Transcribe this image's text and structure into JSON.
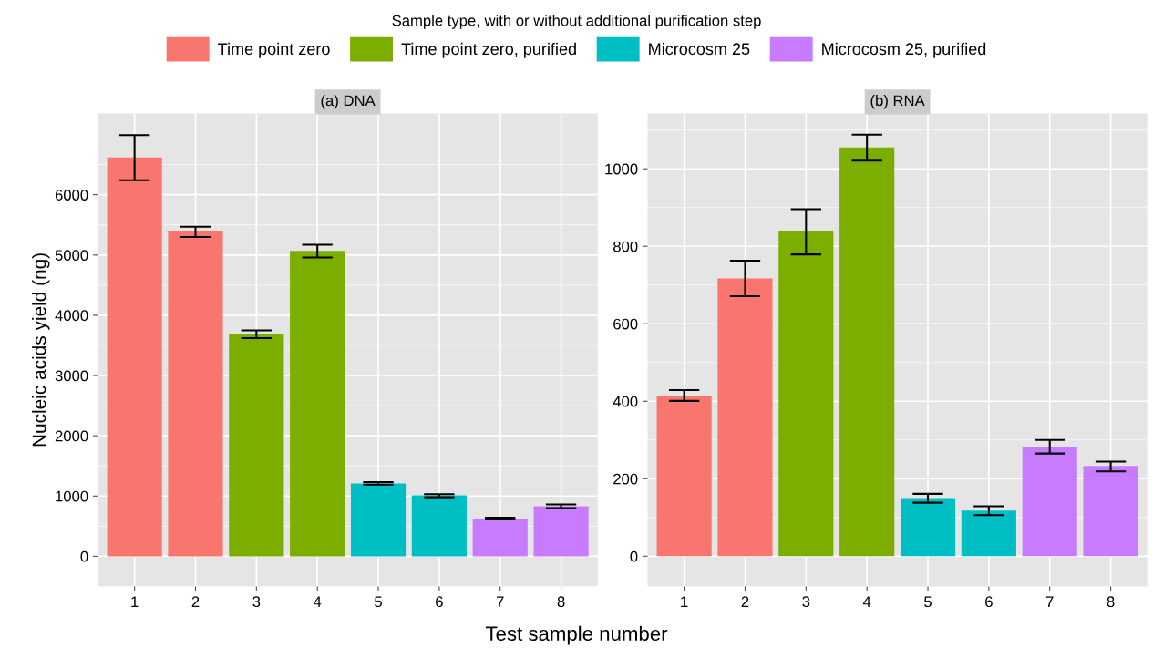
{
  "chart_data": [
    {
      "type": "bar",
      "title": "(a) DNA",
      "xlabel": "Test sample number",
      "ylabel": "Nucleic acids yield (ng)",
      "legend_title": "Sample type, with or without additional purification step",
      "legend": "top",
      "categories": [
        "1",
        "2",
        "3",
        "4",
        "5",
        "6",
        "7",
        "8"
      ],
      "series": [
        {
          "name": "Time point zero",
          "color": "#f8766d",
          "values": [
            6620,
            5390,
            null,
            null,
            null,
            null,
            null,
            null
          ],
          "errors": [
            [
              6240,
              6990
            ],
            [
              5300,
              5470
            ],
            null,
            null,
            null,
            null,
            null,
            null
          ]
        },
        {
          "name": "Time point zero, purified",
          "color": "#7cae00",
          "values": [
            null,
            null,
            3690,
            5070,
            null,
            null,
            null,
            null
          ],
          "errors": [
            null,
            null,
            [
              3620,
              3750
            ],
            [
              4960,
              5170
            ],
            null,
            null,
            null,
            null
          ]
        },
        {
          "name": "Microcosm 25",
          "color": "#00bfc4",
          "values": [
            null,
            null,
            null,
            null,
            1210,
            1010,
            null,
            null
          ],
          "errors": [
            null,
            null,
            null,
            null,
            [
              1190,
              1230
            ],
            [
              980,
              1030
            ],
            null,
            null
          ]
        },
        {
          "name": "Microcosm 25, purified",
          "color": "#c77cff",
          "values": [
            null,
            null,
            null,
            null,
            null,
            null,
            620,
            830
          ],
          "errors": [
            null,
            null,
            null,
            null,
            null,
            null,
            [
              610,
              640
            ],
            [
              800,
              860
            ]
          ]
        }
      ],
      "ylim": [
        -500,
        7350
      ],
      "yticks": [
        0,
        1000,
        2000,
        3000,
        4000,
        5000,
        6000
      ],
      "grid": true
    },
    {
      "type": "bar",
      "title": "(b) RNA",
      "categories": [
        "1",
        "2",
        "3",
        "4",
        "5",
        "6",
        "7",
        "8"
      ],
      "series": [
        {
          "color": "#f8766d",
          "values": [
            415,
            717,
            null,
            null,
            null,
            null,
            null,
            null
          ],
          "errors": [
            [
              401,
              429
            ],
            [
              671,
              763
            ],
            null,
            null,
            null,
            null,
            null,
            null
          ]
        },
        {
          "color": "#7cae00",
          "values": [
            null,
            null,
            839,
            1055,
            null,
            null,
            null,
            null
          ],
          "errors": [
            null,
            null,
            [
              779,
              896
            ],
            [
              1021,
              1088
            ],
            null,
            null,
            null,
            null
          ]
        },
        {
          "color": "#00bfc4",
          "values": [
            null,
            null,
            null,
            null,
            150,
            118,
            null,
            null
          ],
          "errors": [
            null,
            null,
            null,
            null,
            [
              138,
              161
            ],
            [
              106,
              129
            ],
            null,
            null
          ]
        },
        {
          "color": "#c77cff",
          "values": [
            null,
            null,
            null,
            null,
            null,
            null,
            283,
            233
          ],
          "errors": [
            null,
            null,
            null,
            null,
            null,
            null,
            [
              265,
              300
            ],
            [
              219,
              244
            ]
          ]
        }
      ],
      "ylim": [
        -78,
        1143
      ],
      "yticks": [
        0,
        200,
        400,
        600,
        800,
        1000
      ],
      "grid": true
    }
  ]
}
